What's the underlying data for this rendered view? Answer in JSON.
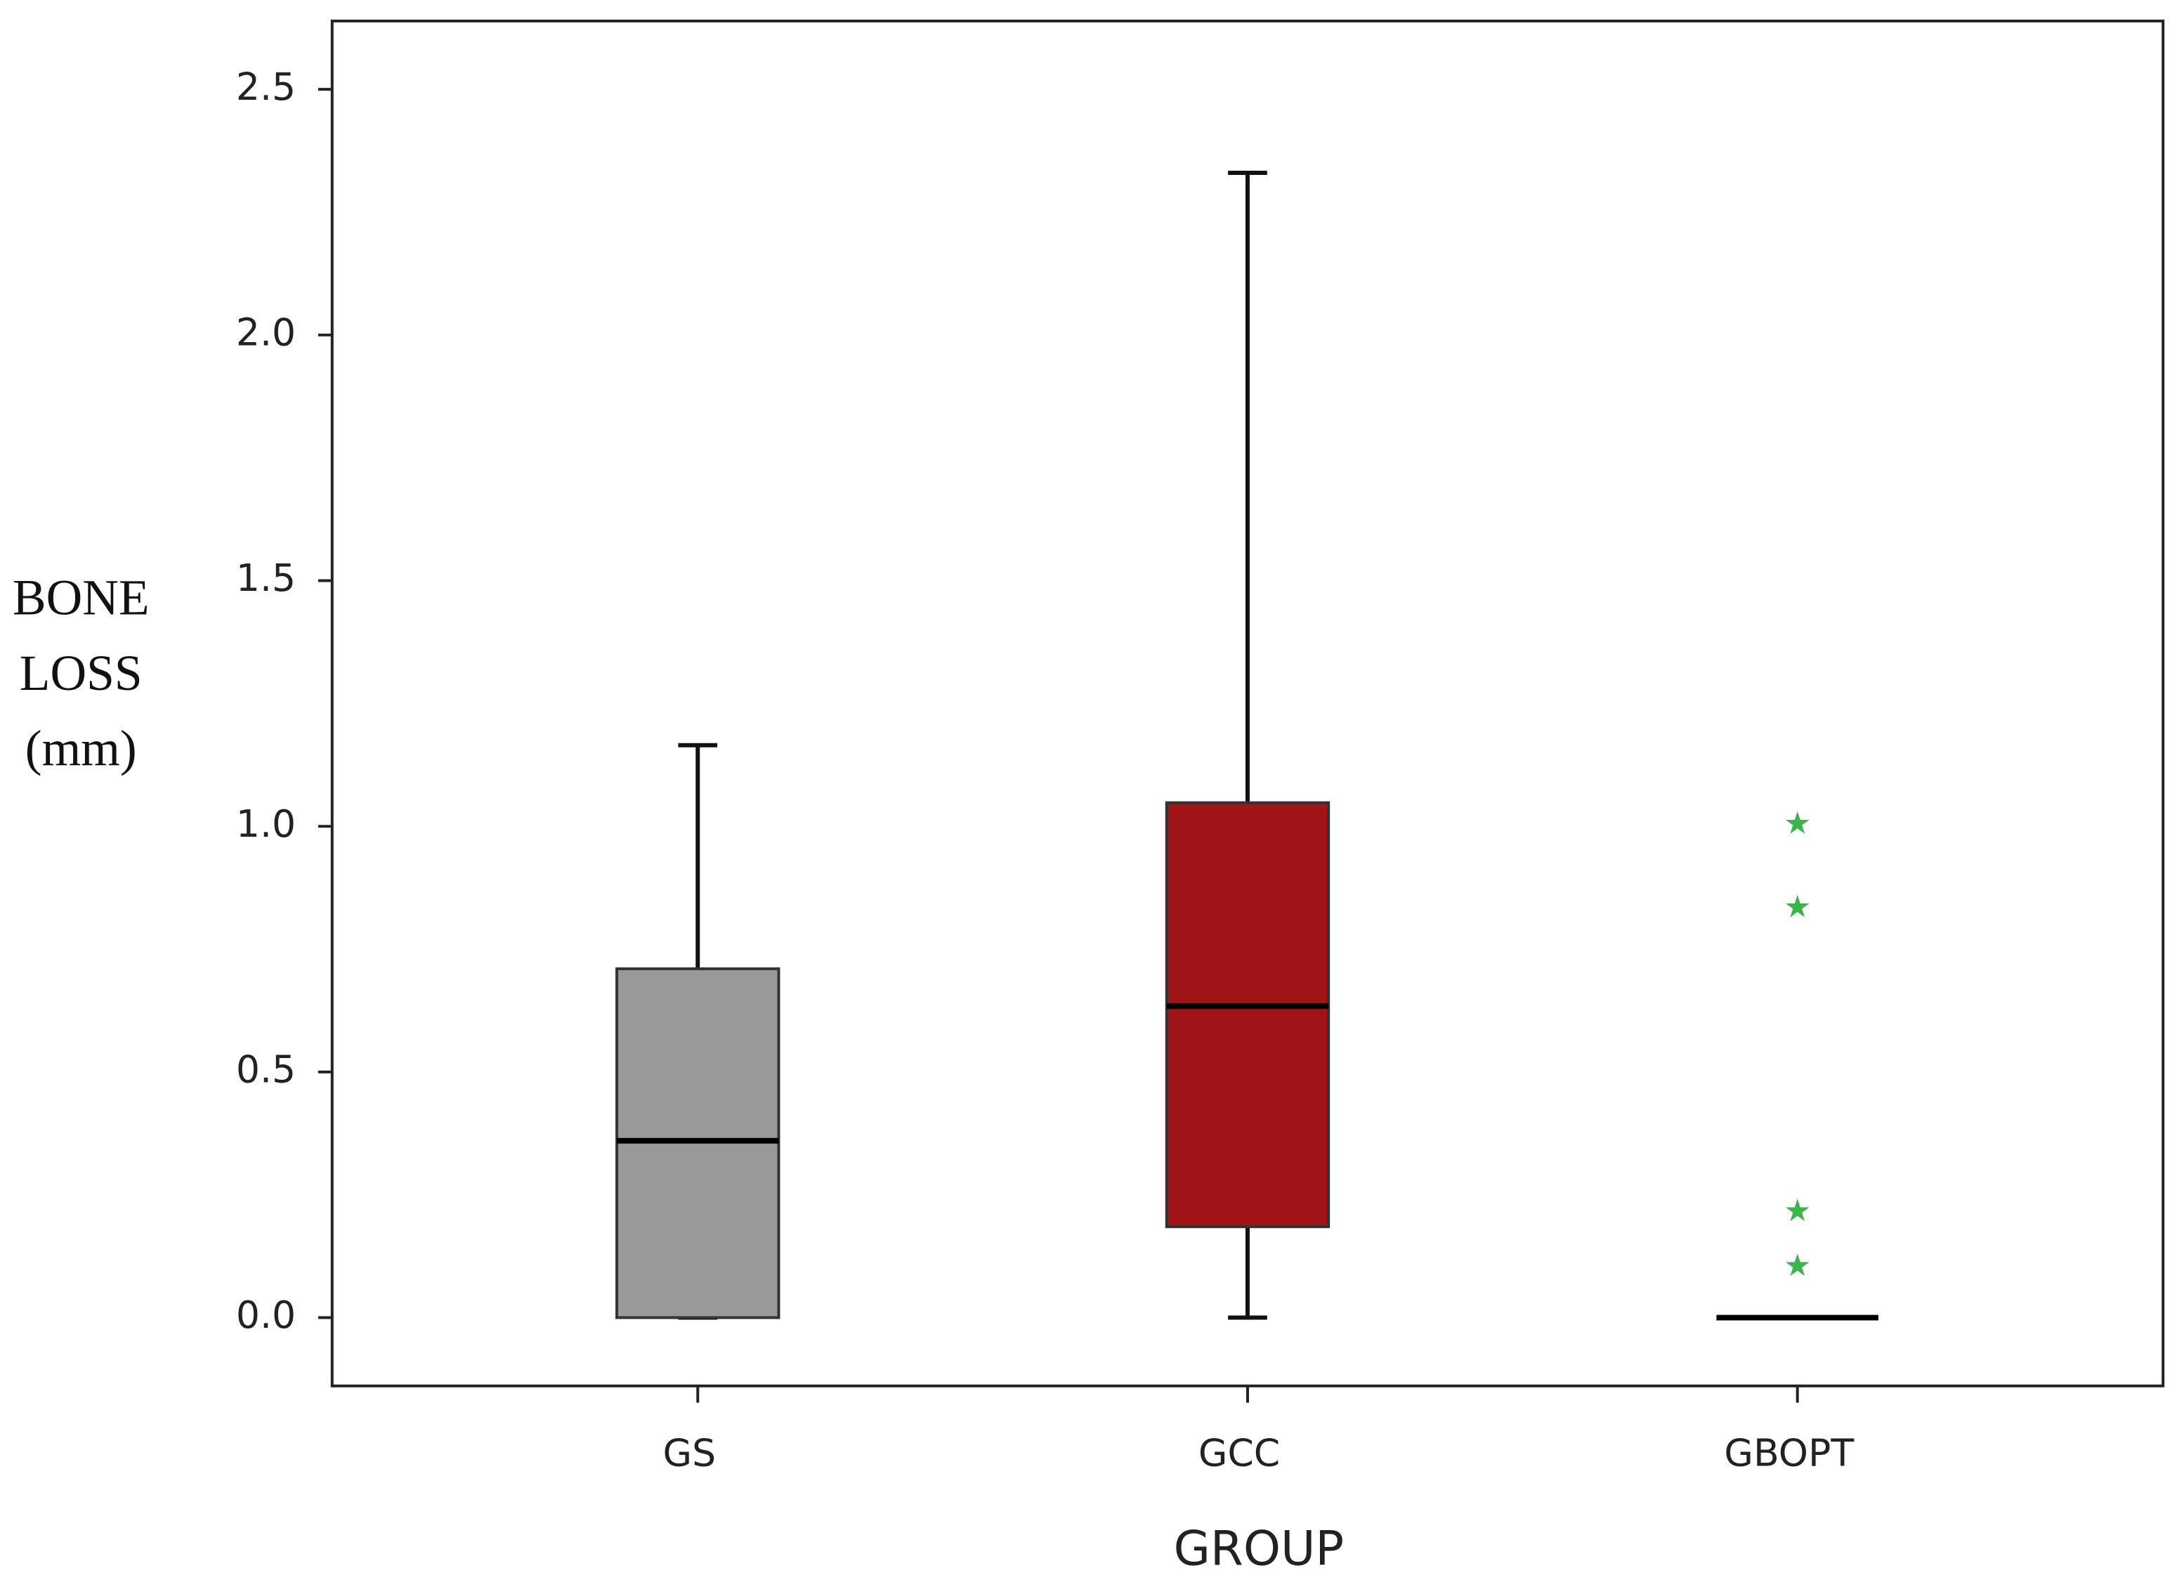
{
  "chart_data": {
    "type": "box",
    "xlabel": "GROUP",
    "ylabel_lines": [
      "BONE",
      "LOSS",
      "(mm)"
    ],
    "categories": [
      "GS",
      "GCC",
      "GBOPT"
    ],
    "boxes": [
      {
        "min": 0,
        "q1": 0,
        "median": 0.36,
        "q3": 0.71,
        "max": 1.165,
        "color": "#999999",
        "outliers": []
      },
      {
        "min": 0,
        "q1": 0.185,
        "median": 0.634,
        "q3": 1.048,
        "max": 2.33,
        "color": "#a01418",
        "outliers": []
      },
      {
        "min": 0,
        "q1": 0,
        "median": 0,
        "q3": 0,
        "max": 0,
        "color": "#3cb44b",
        "outliers": [
          1.011,
          0.841,
          0.222,
          0.111
        ]
      }
    ],
    "ylim": [
      -0.139,
      2.639
    ],
    "yticks": [
      {
        "value": 0,
        "label": "0.0"
      },
      0.5,
      {
        "value": 1,
        "label": "1.0"
      },
      1.5,
      {
        "value": 2,
        "label": "2.0"
      },
      2.5
    ]
  }
}
